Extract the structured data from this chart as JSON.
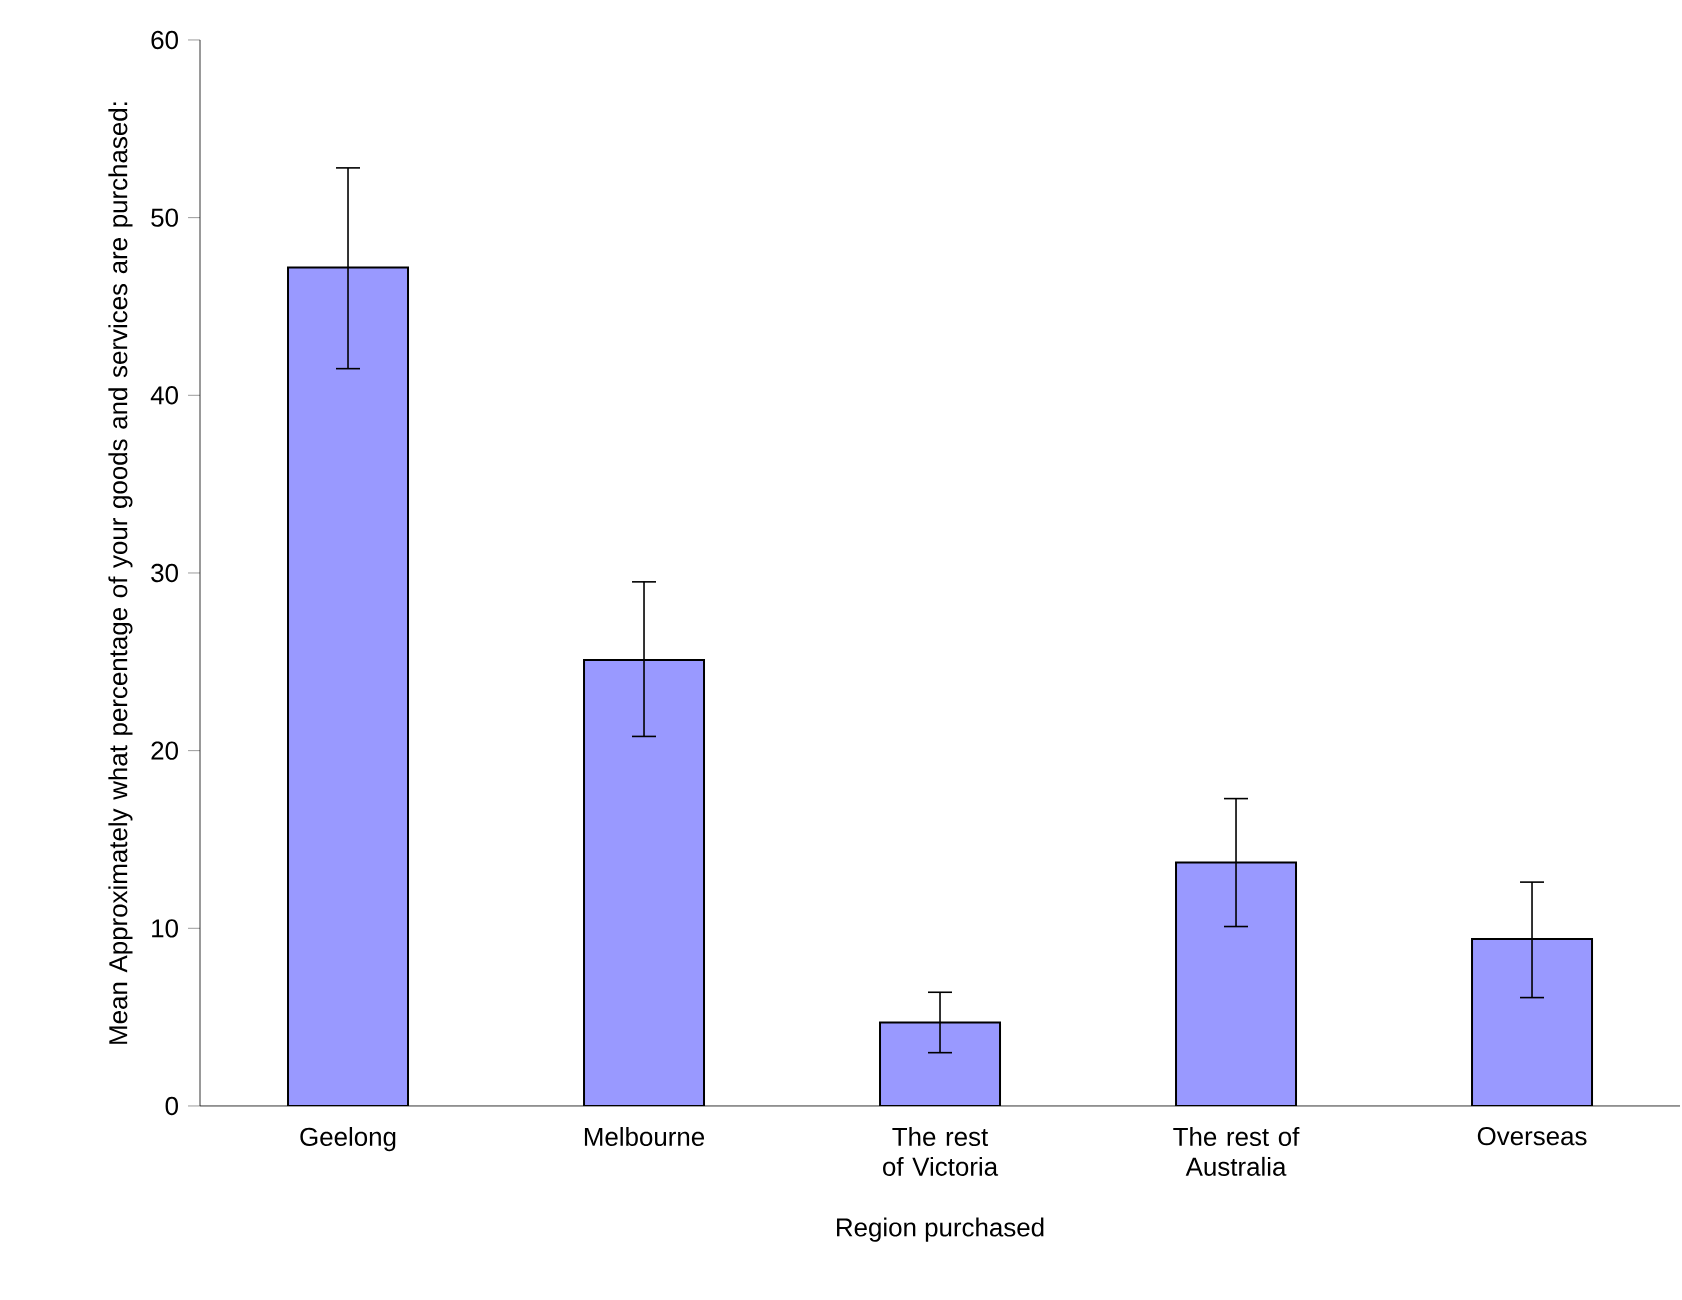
{
  "chart_data": {
    "type": "bar",
    "xlabel": "Region purchased",
    "ylabel": "Mean Approximately what percentage of your goods and services are purchased:",
    "categories": [
      "Geelong",
      "Melbourne",
      "The rest of Victoria",
      "The rest of Australia",
      "Overseas"
    ],
    "values": [
      47.2,
      25.1,
      4.7,
      13.7,
      9.4
    ],
    "errors": [
      [
        41.5,
        52.8
      ],
      [
        20.8,
        29.5
      ],
      [
        3.0,
        6.4
      ],
      [
        10.1,
        17.3
      ],
      [
        6.1,
        12.6
      ]
    ],
    "color": "#9999ff",
    "ylim": [
      0,
      60
    ],
    "yticks": [
      0,
      10,
      20,
      30,
      40,
      50,
      60
    ]
  }
}
